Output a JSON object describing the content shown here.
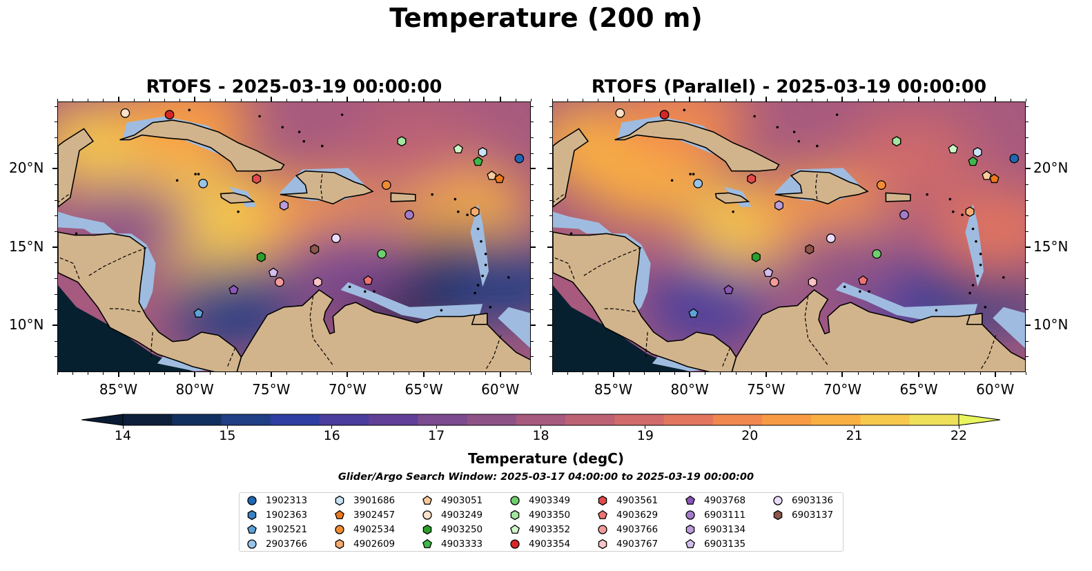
{
  "suptitle": "Temperature (200 m)",
  "panels": [
    {
      "title": "RTOFS - 2025-03-19 00:00:00",
      "variant": "rtofs"
    },
    {
      "title": "RTOFS (Parallel) - 2025-03-19 00:00:00",
      "variant": "parallel"
    }
  ],
  "axes": {
    "lon_range": [
      -89,
      -58
    ],
    "lat_range": [
      7,
      24.3
    ],
    "x_ticks": [
      {
        "value": -85,
        "label": "85°W"
      },
      {
        "value": -80,
        "label": "80°W"
      },
      {
        "value": -75,
        "label": "75°W"
      },
      {
        "value": -70,
        "label": "70°W"
      },
      {
        "value": -65,
        "label": "65°W"
      },
      {
        "value": -60,
        "label": "60°W"
      }
    ],
    "y_ticks": [
      {
        "value": 10,
        "label": "10°N"
      },
      {
        "value": 15,
        "label": "15°N"
      },
      {
        "value": 20,
        "label": "20°N"
      }
    ]
  },
  "colorbar": {
    "title": "Temperature (degC)",
    "min": 14,
    "max": 22,
    "step": 0.5,
    "tick_labels": [
      "14",
      "15",
      "16",
      "17",
      "18",
      "19",
      "20",
      "21",
      "22"
    ],
    "colors": [
      "#0d1f3a",
      "#12305f",
      "#1f3e83",
      "#2f3ea1",
      "#4a3d9c",
      "#613f97",
      "#7b4a8f",
      "#8f5286",
      "#a75a7e",
      "#bd6275",
      "#d06a6b",
      "#e2765e",
      "#f08850",
      "#f89b45",
      "#f9b043",
      "#f6c94c",
      "#efe05a"
    ],
    "under_color": "#0a1c33",
    "over_color": "#e9f55e"
  },
  "map_colors": {
    "land": "#d2b48c",
    "shallow": "#9fbce0",
    "deep_sw": "#06202f",
    "coast": "#000000"
  },
  "search_window": "Glider/Argo Search Window: 2025-03-17 04:00:00 to 2025-03-19 00:00:00",
  "legend": [
    {
      "id": "1902313",
      "marker": "circle",
      "color": "#1f67b4"
    },
    {
      "id": "1902363",
      "marker": "hexagon",
      "color": "#3a82c4"
    },
    {
      "id": "1902521",
      "marker": "pentagon",
      "color": "#5da2d8"
    },
    {
      "id": "2903766",
      "marker": "circle",
      "color": "#98c4ea"
    },
    {
      "id": "3901686",
      "marker": "hexagon",
      "color": "#c9e3f7"
    },
    {
      "id": "3902457",
      "marker": "pentagon",
      "color": "#ed7a1c"
    },
    {
      "id": "4902534",
      "marker": "circle",
      "color": "#f08d34"
    },
    {
      "id": "4902609",
      "marker": "hexagon",
      "color": "#f6ac6e"
    },
    {
      "id": "4903051",
      "marker": "pentagon",
      "color": "#f9cb9c"
    },
    {
      "id": "4903249",
      "marker": "circle",
      "color": "#fde1c8"
    },
    {
      "id": "4903250",
      "marker": "hexagon",
      "color": "#2ca02c"
    },
    {
      "id": "4903333",
      "marker": "pentagon",
      "color": "#3fb84a"
    },
    {
      "id": "4903349",
      "marker": "circle",
      "color": "#6ecf6e"
    },
    {
      "id": "4903350",
      "marker": "hexagon",
      "color": "#a3e6a0"
    },
    {
      "id": "4903352",
      "marker": "pentagon",
      "color": "#cdf6c6"
    },
    {
      "id": "4903354",
      "marker": "circle",
      "color": "#d62728"
    },
    {
      "id": "4903561",
      "marker": "hexagon",
      "color": "#e34a4a"
    },
    {
      "id": "4903629",
      "marker": "pentagon",
      "color": "#ee7272"
    },
    {
      "id": "4903766",
      "marker": "circle",
      "color": "#f49a9a"
    },
    {
      "id": "4903767",
      "marker": "hexagon",
      "color": "#fbc3c3"
    },
    {
      "id": "4903768",
      "marker": "pentagon",
      "color": "#8c56b8"
    },
    {
      "id": "6903111",
      "marker": "circle",
      "color": "#a47ccb"
    },
    {
      "id": "6903134",
      "marker": "hexagon",
      "color": "#bb9cdc"
    },
    {
      "id": "6903135",
      "marker": "pentagon",
      "color": "#d5bdee"
    },
    {
      "id": "6903136",
      "marker": "circle",
      "color": "#ecdcfb"
    },
    {
      "id": "6903137",
      "marker": "hexagon",
      "color": "#8c564b"
    }
  ],
  "floats": [
    {
      "id": "1902313",
      "lon": -58.8,
      "lat": 20.7
    },
    {
      "id": "1902363",
      "lon": -66.5,
      "lat": 21.8
    },
    {
      "id": "1902521",
      "lon": -79.8,
      "lat": 10.8
    },
    {
      "id": "2903766",
      "lon": -79.5,
      "lat": 19.1
    },
    {
      "id": "3901686",
      "lon": -61.2,
      "lat": 21.1
    },
    {
      "id": "3902457",
      "lon": -60.1,
      "lat": 19.4
    },
    {
      "id": "4902534",
      "lon": -67.5,
      "lat": 19.0
    },
    {
      "id": "4902609",
      "lon": -61.7,
      "lat": 17.3
    },
    {
      "id": "4903051",
      "lon": -60.6,
      "lat": 19.6
    },
    {
      "id": "4903249",
      "lon": -84.6,
      "lat": 23.6
    },
    {
      "id": "4903250",
      "lon": -75.7,
      "lat": 14.4
    },
    {
      "id": "4903333",
      "lon": -61.5,
      "lat": 20.5
    },
    {
      "id": "4903349",
      "lon": -67.8,
      "lat": 14.6
    },
    {
      "id": "4903350",
      "lon": -66.5,
      "lat": 21.8
    },
    {
      "id": "4903352",
      "lon": -62.8,
      "lat": 21.3
    },
    {
      "id": "4903354",
      "lon": -81.7,
      "lat": 23.5
    },
    {
      "id": "4903561",
      "lon": -76.0,
      "lat": 19.4
    },
    {
      "id": "4903629",
      "lon": -68.7,
      "lat": 12.9
    },
    {
      "id": "4903766",
      "lon": -74.5,
      "lat": 12.8
    },
    {
      "id": "4903767",
      "lon": -72.0,
      "lat": 12.8
    },
    {
      "id": "4903768",
      "lon": -77.5,
      "lat": 12.3
    },
    {
      "id": "6903111",
      "lon": -66.0,
      "lat": 17.1
    },
    {
      "id": "6903134",
      "lon": -74.2,
      "lat": 17.7
    },
    {
      "id": "6903135",
      "lon": -74.9,
      "lat": 13.4
    },
    {
      "id": "6903136",
      "lon": -70.8,
      "lat": 15.6
    },
    {
      "id": "6903137",
      "lon": -72.2,
      "lat": 14.9
    }
  ],
  "temperature_features": {
    "rtofs": [
      {
        "lon": -82.5,
        "lat": 19.6,
        "t": 21.8
      },
      {
        "lon": -86.2,
        "lat": 21.5,
        "t": 21.7
      },
      {
        "lon": -76.5,
        "lat": 17.0,
        "t": 21.9
      },
      {
        "lon": -79.5,
        "lat": 15.6,
        "t": 21.6
      },
      {
        "lon": -71.5,
        "lat": 16.8,
        "t": 20.8
      },
      {
        "lon": -62.5,
        "lat": 17.5,
        "t": 21.0
      },
      {
        "lon": -77.5,
        "lat": 11.3,
        "t": 15.0
      },
      {
        "lon": -66.8,
        "lat": 11.8,
        "t": 14.2
      },
      {
        "lon": -63.0,
        "lat": 13.5,
        "t": 14.9
      },
      {
        "lon": -59.5,
        "lat": 13.0,
        "t": 15.0
      },
      {
        "lon": -70.0,
        "lat": 13.8,
        "t": 17.2
      },
      {
        "lon": -84.5,
        "lat": 16.5,
        "t": 17.8
      },
      {
        "lon": -65.5,
        "lat": 21.5,
        "t": 18.8
      },
      {
        "lon": -80.5,
        "lat": 23.2,
        "t": 20.5
      }
    ],
    "parallel": [
      {
        "lon": -76.0,
        "lat": 16.5,
        "t": 21.8
      },
      {
        "lon": -82.8,
        "lat": 19.5,
        "t": 21.2
      },
      {
        "lon": -86.2,
        "lat": 21.5,
        "t": 21.3
      },
      {
        "lon": -71.5,
        "lat": 17.2,
        "t": 20.8
      },
      {
        "lon": -79.0,
        "lat": 11.3,
        "t": 16.0
      },
      {
        "lon": -66.0,
        "lat": 12.0,
        "t": 15.8
      },
      {
        "lon": -60.5,
        "lat": 12.5,
        "t": 15.4
      },
      {
        "lon": -70.0,
        "lat": 13.8,
        "t": 17.8
      },
      {
        "lon": -65.5,
        "lat": 20.8,
        "t": 19.4
      },
      {
        "lon": -80.5,
        "lat": 23.2,
        "t": 20.2
      },
      {
        "lon": -60.0,
        "lat": 16.0,
        "t": 19.8
      }
    ]
  }
}
